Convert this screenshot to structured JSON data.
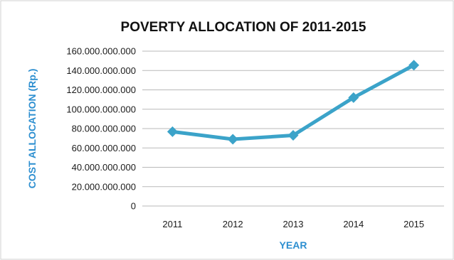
{
  "chart_data": {
    "type": "line",
    "title": "POVERTY ALLOCATION OF 2011-2015",
    "xlabel": "YEAR",
    "ylabel": "COST ALLOCATION (Rp.)",
    "categories": [
      "2011",
      "2012",
      "2013",
      "2014",
      "2015"
    ],
    "series": [
      {
        "values": [
          76800000000,
          69000000000,
          73000000000,
          112000000000,
          145500000000
        ]
      }
    ],
    "y_ticks": [
      "0",
      "20.000.000.000",
      "40.000.000.000",
      "60.000.000.000",
      "80.000.000.000",
      "100.000.000.000",
      "120.000.000.000",
      "140.000.000.000",
      "160.000.000.000"
    ],
    "ylim": [
      0,
      160000000000
    ],
    "grid": true,
    "legend": "none",
    "colors": {
      "line": "#3ba3c9",
      "marker": "#3ba3c9",
      "grid": "#b9b9b9",
      "frame": "#d0d0d0",
      "axis_title": "#2d8fd0"
    }
  }
}
